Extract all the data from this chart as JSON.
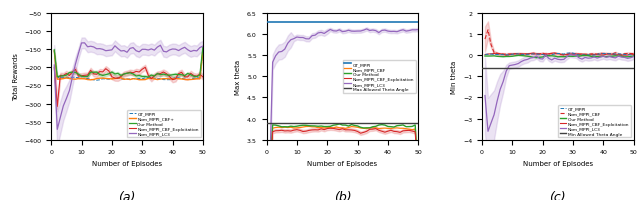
{
  "fig_width": 6.4,
  "fig_height": 2.01,
  "dpi": 100,
  "subplot_labels": [
    "(a)",
    "(b)",
    "(c)"
  ],
  "xlabel": "Number of Episodes",
  "xlim": [
    0,
    50
  ],
  "n_episodes": 50,
  "colors": {
    "GT_MPPI": "#1f77b4",
    "Nom_MPPI_CBF": "#ff7f0e",
    "Our_Method": "#2ca02c",
    "Nom_MPPI_CBF_Exp": "#d62728",
    "Nom_MPPI_LC3": "#9467bd",
    "threshold": "#404040"
  },
  "panel_a": {
    "ylabel": "Total Rewards",
    "ylim": [
      -400,
      -50
    ],
    "yticks": [
      -400,
      -350,
      -300,
      -250,
      -200,
      -150,
      -100,
      -50
    ],
    "legend_loc": "lower right",
    "legend_labels": [
      "GT_MPPI",
      "Nom_MPPI_CBF+",
      "Our Method",
      "Nom_MPPI_CBF_Exploitation",
      "Nom_MPPI_LC3"
    ],
    "gt_mean": -230,
    "gt_std": 4,
    "cbf_mean": -220,
    "cbf_std": 12,
    "our_mean": -220,
    "our_std": 8,
    "exp_mean": -232,
    "exp_std": 3,
    "lc3_plateau": -150,
    "lc3_std_plateau": 15,
    "lc3_std_early": 55
  },
  "panel_b": {
    "ylabel": "Max theta",
    "ylim": [
      3.5,
      6.5
    ],
    "yticks": [
      4.0,
      4.5,
      5.0,
      5.5,
      6.0,
      6.5
    ],
    "hline_blue": 6.28,
    "hline_gray": 3.9,
    "lc3_start": 5.3,
    "lc3_end": 6.08,
    "cbf_mean": 3.78,
    "our_mean": 3.82,
    "exp_mean": 3.72,
    "legend_loc": "center right",
    "legend_labels": [
      "GT_MPPI",
      "Nom_MPPI_CBF",
      "Our Method",
      "Nom_MPPI_CBF_Exploitation",
      "Nom_MPPI_LC3",
      "Max Allowed Theta Angle"
    ]
  },
  "panel_c": {
    "ylabel": "Min theta",
    "ylim": [
      -4,
      2
    ],
    "yticks": [
      -4,
      -3,
      -2,
      -1,
      0,
      1,
      2
    ],
    "hline_gray": -0.6,
    "gt_mean": 0.05,
    "cbf_mean": 0.08,
    "our_mean": -0.05,
    "exp_mean": 0.05,
    "lc3_plateau": -0.1,
    "legend_loc": "lower right",
    "legend_labels": [
      "GT_MPPI",
      "Nom_MPPI_CBF",
      "Our Method",
      "Nom_MPPI_CBF_Exploitation",
      "Nom_MPPI_LC3",
      "Min Allowed Theta Angle"
    ]
  }
}
